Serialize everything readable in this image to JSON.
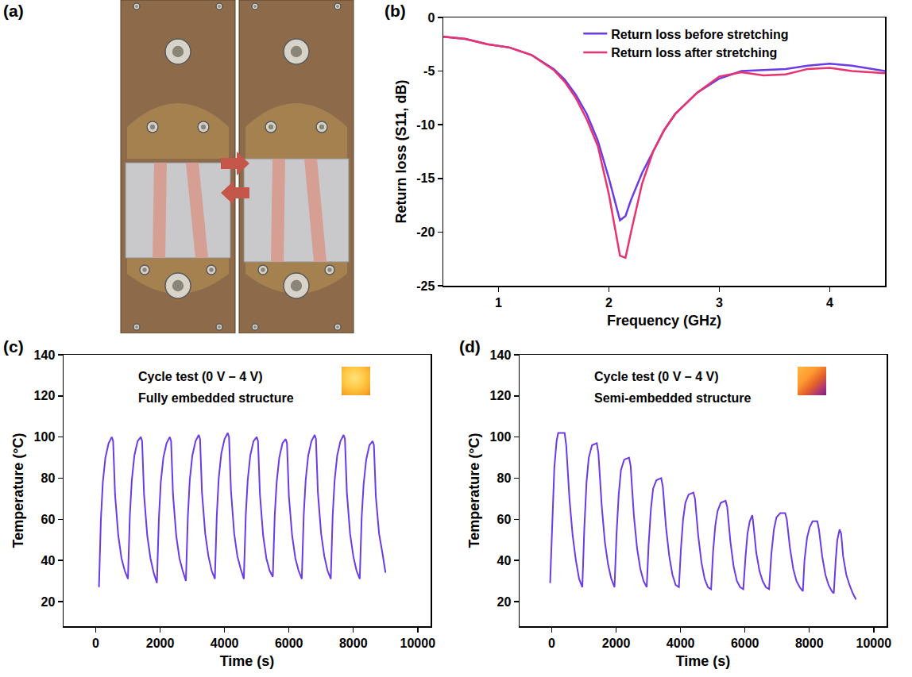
{
  "photo_panel": {
    "panel_label": "(a)"
  },
  "chart_data": [
    {
      "panel_label": "(b)",
      "type": "line",
      "x_label": "Frequency (GHz)",
      "y_label": "Return loss (S11, dB)",
      "xlim": [
        0.5,
        4.5
      ],
      "xticks": [
        1,
        2,
        3,
        4
      ],
      "ylim": [
        -25,
        0
      ],
      "yticks": [
        -25,
        -20,
        -15,
        -10,
        -5,
        0
      ],
      "grid": false,
      "legend": "top",
      "x": [
        0.5,
        0.7,
        0.9,
        1.1,
        1.3,
        1.5,
        1.6,
        1.7,
        1.8,
        1.9,
        2.0,
        2.05,
        2.1,
        2.15,
        2.2,
        2.3,
        2.4,
        2.5,
        2.6,
        2.8,
        3.0,
        3.2,
        3.4,
        3.6,
        3.8,
        4.0,
        4.2,
        4.5
      ],
      "series": [
        {
          "name": "Return loss before stretching",
          "color": "#6a3be6",
          "values": [
            -1.8,
            -2.0,
            -2.5,
            -2.8,
            -3.5,
            -4.8,
            -5.8,
            -7.2,
            -9.0,
            -11.5,
            -15.0,
            -17.0,
            -18.9,
            -18.5,
            -17.0,
            -14.5,
            -12.5,
            -10.5,
            -9.0,
            -7.0,
            -5.7,
            -5.0,
            -4.9,
            -4.8,
            -4.5,
            -4.3,
            -4.5,
            -5.0
          ]
        },
        {
          "name": "Return loss after stretching",
          "color": "#e8336e",
          "values": [
            -1.8,
            -2.0,
            -2.5,
            -2.8,
            -3.5,
            -4.9,
            -6.0,
            -7.5,
            -9.5,
            -12.0,
            -16.5,
            -19.5,
            -22.2,
            -22.4,
            -20.0,
            -15.5,
            -12.5,
            -10.5,
            -9.0,
            -7.0,
            -5.5,
            -5.1,
            -5.4,
            -5.3,
            -4.8,
            -4.7,
            -5.0,
            -5.2
          ]
        }
      ]
    },
    {
      "panel_label": "(c)",
      "type": "line",
      "x_label": "Time (s)",
      "y_label": "Temperature (°C)",
      "annotations": [
        "Cycle test (0 V – 4 V)",
        "Fully embedded structure"
      ],
      "xlim": [
        -1000,
        10400
      ],
      "xticks": [
        0,
        2000,
        4000,
        6000,
        8000,
        10000
      ],
      "ylim": [
        8,
        140
      ],
      "yticks": [
        20,
        40,
        60,
        80,
        100,
        120,
        140
      ],
      "grid": false,
      "color": "#6a3be6",
      "x": [
        100,
        160,
        220,
        300,
        400,
        500,
        540,
        600,
        700,
        800,
        900,
        1000,
        1060,
        1120,
        1200,
        1300,
        1400,
        1440,
        1500,
        1600,
        1700,
        1800,
        1900,
        1960,
        2020,
        2100,
        2200,
        2300,
        2340,
        2400,
        2500,
        2600,
        2700,
        2800,
        2860,
        2920,
        3000,
        3100,
        3200,
        3240,
        3300,
        3400,
        3500,
        3600,
        3700,
        3760,
        3820,
        3900,
        4000,
        4100,
        4140,
        4200,
        4300,
        4400,
        4500,
        4600,
        4660,
        4720,
        4800,
        4900,
        5000,
        5040,
        5100,
        5200,
        5300,
        5400,
        5500,
        5560,
        5620,
        5700,
        5800,
        5900,
        5940,
        6000,
        6100,
        6200,
        6300,
        6400,
        6460,
        6520,
        6600,
        6700,
        6800,
        6840,
        6900,
        7000,
        7100,
        7200,
        7300,
        7360,
        7420,
        7500,
        7600,
        7700,
        7740,
        7800,
        7900,
        8000,
        8100,
        8200,
        8260,
        8320,
        8400,
        8500,
        8600,
        8640,
        8700,
        8800,
        8900,
        9000
      ],
      "values": [
        27,
        60,
        78,
        90,
        97,
        100,
        98,
        72,
        52,
        41,
        35,
        31,
        62,
        79,
        91,
        98,
        100,
        98,
        72,
        52,
        41,
        34,
        29,
        60,
        78,
        90,
        97,
        100,
        98,
        72,
        52,
        41,
        35,
        30,
        61,
        79,
        91,
        98,
        101,
        99,
        73,
        53,
        42,
        35,
        31,
        62,
        80,
        92,
        99,
        102,
        100,
        74,
        53,
        42,
        36,
        31,
        62,
        79,
        91,
        98,
        100,
        98,
        72,
        52,
        41,
        35,
        32,
        62,
        78,
        90,
        97,
        99,
        97,
        71,
        52,
        41,
        35,
        31,
        62,
        79,
        91,
        98,
        101,
        99,
        73,
        53,
        42,
        35,
        31,
        62,
        79,
        91,
        98,
        101,
        99,
        73,
        53,
        42,
        35,
        31,
        61,
        77,
        89,
        96,
        98,
        96,
        71,
        53,
        44,
        34
      ]
    },
    {
      "panel_label": "(d)",
      "type": "line",
      "x_label": "Time (s)",
      "y_label": "Temperature (°C)",
      "annotations": [
        "Cycle test (0 V – 4 V)",
        "Semi-embedded structure"
      ],
      "xlim": [
        -1000,
        10400
      ],
      "xticks": [
        0,
        2000,
        4000,
        6000,
        8000,
        10000
      ],
      "ylim": [
        8,
        140
      ],
      "yticks": [
        20,
        40,
        60,
        80,
        100,
        120,
        140
      ],
      "grid": false,
      "color": "#6a3be6",
      "x": [
        -50,
        20,
        80,
        150,
        200,
        400,
        450,
        550,
        650,
        750,
        850,
        950,
        1010,
        1080,
        1150,
        1250,
        1400,
        1450,
        1550,
        1650,
        1750,
        1850,
        1950,
        2010,
        2080,
        2150,
        2250,
        2400,
        2450,
        2550,
        2650,
        2750,
        2850,
        2950,
        3010,
        3080,
        3150,
        3250,
        3400,
        3450,
        3550,
        3650,
        3750,
        3850,
        3950,
        4010,
        4080,
        4150,
        4250,
        4400,
        4450,
        4550,
        4650,
        4750,
        4850,
        4950,
        5010,
        5080,
        5150,
        5250,
        5400,
        5450,
        5550,
        5650,
        5750,
        5850,
        5950,
        6020,
        6080,
        6150,
        6230,
        6280,
        6350,
        6450,
        6550,
        6650,
        6750,
        6820,
        6900,
        6980,
        7100,
        7250,
        7300,
        7400,
        7500,
        7600,
        7700,
        7800,
        7850,
        7930,
        8010,
        8100,
        8250,
        8300,
        8400,
        8500,
        8600,
        8700,
        8760,
        8820,
        8870,
        8940,
        8990,
        9050,
        9150,
        9250,
        9350,
        9450
      ],
      "values": [
        29,
        60,
        85,
        98,
        102,
        102,
        96,
        70,
        52,
        40,
        31,
        27,
        55,
        78,
        90,
        96,
        97,
        92,
        67,
        49,
        38,
        31,
        27,
        52,
        72,
        84,
        89,
        90,
        86,
        62,
        46,
        36,
        30,
        27,
        48,
        65,
        75,
        79,
        80,
        76,
        56,
        42,
        33,
        28,
        27,
        45,
        60,
        68,
        72,
        73,
        70,
        52,
        39,
        31,
        27,
        26,
        44,
        57,
        64,
        68,
        69,
        66,
        49,
        37,
        30,
        27,
        26,
        42,
        53,
        59,
        62,
        55,
        44,
        35,
        30,
        27,
        26,
        43,
        55,
        61,
        63,
        63,
        60,
        46,
        36,
        30,
        27,
        25,
        40,
        51,
        56,
        59,
        59,
        55,
        42,
        33,
        28,
        25,
        24,
        40,
        50,
        55,
        53,
        42,
        33,
        28,
        24,
        21
      ]
    }
  ]
}
